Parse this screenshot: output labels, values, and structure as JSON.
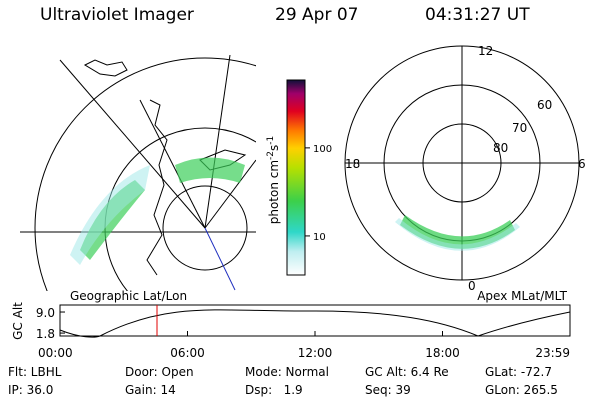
{
  "header": {
    "title": "Ultraviolet Imager",
    "date": "29 Apr 07",
    "time": "04:31:27 UT"
  },
  "colorbar": {
    "unit": "photon cm",
    "exp1": "-2",
    "unit2": "s",
    "exp2": "-1",
    "scale": "log",
    "clim": [
      3.6,
      590
    ],
    "ticks": [
      10,
      100
    ]
  },
  "left_map": {
    "label": "Geographic Lat/Lon"
  },
  "right_map": {
    "label": "Apex MLat/MLT",
    "hours": [
      "12",
      "18",
      "6",
      "0"
    ],
    "lats": [
      80,
      70,
      60
    ]
  },
  "altitude_plot": {
    "ylabel": "GC Alt",
    "ylim": [
      0.8,
      11.4
    ],
    "yticks": [
      {
        "value": 9.0,
        "label": "9.0"
      },
      {
        "value": 1.8,
        "label": "1.8"
      }
    ],
    "xticks": [
      "00:00",
      "06:00",
      "12:00",
      "18:00",
      "23:59"
    ]
  },
  "info": {
    "rows": [
      [
        "Flt: LBHL",
        "Door: Open",
        "Mode: Normal",
        "GC Alt: 6.4 Re",
        "GLat: -72.7"
      ],
      [
        "IP: 36.0",
        "Gain: 14",
        "Dsp:   1.9",
        "Seq: 39",
        "GLon: 265.5"
      ]
    ]
  }
}
